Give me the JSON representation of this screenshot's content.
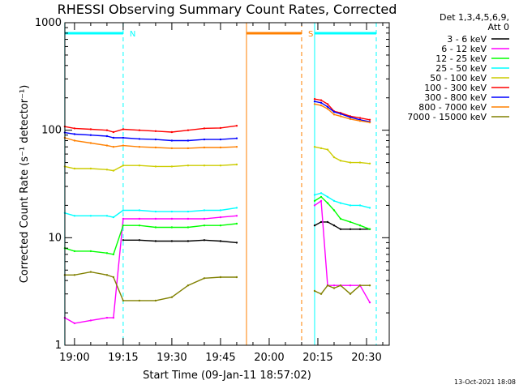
{
  "chart_data": {
    "type": "line",
    "title": "RHESSI Observing Summary Count Rates, Corrected",
    "xlabel": "Start Time (09-Jan-11 18:57:02)",
    "ylabel": "Corrected Count Rate (s⁻¹ detector⁻¹)",
    "yscale": "log",
    "ylim": [
      1,
      1000
    ],
    "xlim": [
      "18:57:02",
      "20:37:00"
    ],
    "x_ticks": [
      "19:00",
      "19:15",
      "19:30",
      "19:45",
      "20:00",
      "20:15",
      "20:30"
    ],
    "y_ticks": [
      "1",
      "10",
      "100",
      "1000"
    ],
    "detector_info": [
      "Det 1,3,4,5,6,9,",
      "Att 0"
    ],
    "footer": "13-Oct-2021 18:08",
    "flag_bars": [
      {
        "label": "N",
        "color": "#00ffff",
        "start": "18:57",
        "end": "19:15"
      },
      {
        "label": "",
        "color": "#00ffff",
        "start": "20:14",
        "end": "20:33"
      },
      {
        "label": "S",
        "color": "#ff8000",
        "start": "19:53",
        "end": "20:10"
      }
    ],
    "vlines": [
      {
        "time": "18:57",
        "color": "#00ffff",
        "style": "solid"
      },
      {
        "time": "19:15",
        "color": "#00ffff",
        "style": "dashed"
      },
      {
        "time": "19:53",
        "color": "#ff8000",
        "style": "solid"
      },
      {
        "time": "20:10",
        "color": "#ff8000",
        "style": "dashed"
      },
      {
        "time": "20:14",
        "color": "#00ffff",
        "style": "solid"
      },
      {
        "time": "20:33",
        "color": "#00ffff",
        "style": "dashed"
      }
    ],
    "x": [
      "18:57",
      "19:00",
      "19:05",
      "19:10",
      "19:12",
      "19:15",
      "19:20",
      "19:25",
      "19:30",
      "19:35",
      "19:40",
      "19:45",
      "19:50",
      "19:53",
      "20:14",
      "20:16",
      "20:18",
      "20:20",
      "20:22",
      "20:25",
      "20:28",
      "20:31",
      "20:32"
    ],
    "series": [
      {
        "name": "3 - 6 keV",
        "color": "#000000",
        "values": [
          null,
          null,
          null,
          null,
          null,
          9.5,
          9.5,
          9.3,
          9.3,
          9.3,
          9.5,
          9.3,
          9.0,
          null,
          13,
          14,
          14,
          13,
          12,
          12,
          12,
          12,
          null
        ]
      },
      {
        "name": "6 - 12 keV",
        "color": "#ff00ff",
        "values": [
          1.8,
          1.6,
          1.7,
          1.8,
          1.8,
          15,
          15,
          15,
          15,
          15,
          15,
          15.5,
          16,
          null,
          20,
          22,
          3.6,
          3.6,
          3.6,
          3.6,
          3.6,
          2.5,
          null
        ]
      },
      {
        "name": "12 - 25 keV",
        "color": "#00ff00",
        "values": [
          8,
          7.5,
          7.5,
          7.2,
          7,
          13,
          13,
          12.5,
          12.5,
          12.5,
          13,
          13,
          13.5,
          null,
          22,
          24,
          21,
          18,
          15,
          14,
          13,
          12,
          null
        ]
      },
      {
        "name": "25 - 50 keV",
        "color": "#00ffff",
        "values": [
          17,
          16,
          16,
          16,
          15.5,
          18,
          18,
          17.5,
          17.5,
          17.5,
          18,
          18,
          19,
          null,
          25,
          26,
          24,
          22,
          21,
          20,
          20,
          19,
          null
        ]
      },
      {
        "name": "50 - 100 keV",
        "color": "#cccc00",
        "values": [
          46,
          44,
          44,
          43,
          42,
          47,
          47,
          46,
          46,
          47,
          47,
          47,
          48,
          null,
          70,
          68,
          66,
          56,
          52,
          50,
          50,
          49,
          null
        ]
      },
      {
        "name": "100 - 300 keV",
        "color": "#ff0000",
        "values": [
          108,
          104,
          102,
          100,
          96,
          102,
          100,
          98,
          96,
          100,
          104,
          105,
          110,
          null,
          195,
          190,
          175,
          150,
          145,
          135,
          130,
          125,
          null
        ]
      },
      {
        "name": "300 - 800 keV",
        "color": "#0000ff",
        "values": [
          95,
          92,
          90,
          88,
          85,
          85,
          83,
          82,
          80,
          80,
          82,
          82,
          84,
          null,
          185,
          180,
          165,
          148,
          142,
          132,
          125,
          120,
          null
        ]
      },
      {
        "name": "800 - 7000 keV",
        "color": "#ff8000",
        "values": [
          85,
          80,
          76,
          72,
          70,
          72,
          70,
          69,
          68,
          68,
          69,
          69,
          70,
          null,
          175,
          170,
          158,
          140,
          135,
          127,
          122,
          118,
          null
        ]
      },
      {
        "name": "7000 - 15000 keV",
        "color": "#808000",
        "values": [
          4.5,
          4.5,
          4.8,
          4.5,
          4.3,
          2.6,
          2.6,
          2.6,
          2.8,
          3.6,
          4.2,
          4.3,
          4.3,
          null,
          3.2,
          3.0,
          3.6,
          3.4,
          3.6,
          3.0,
          3.6,
          3.6,
          null
        ]
      }
    ]
  }
}
